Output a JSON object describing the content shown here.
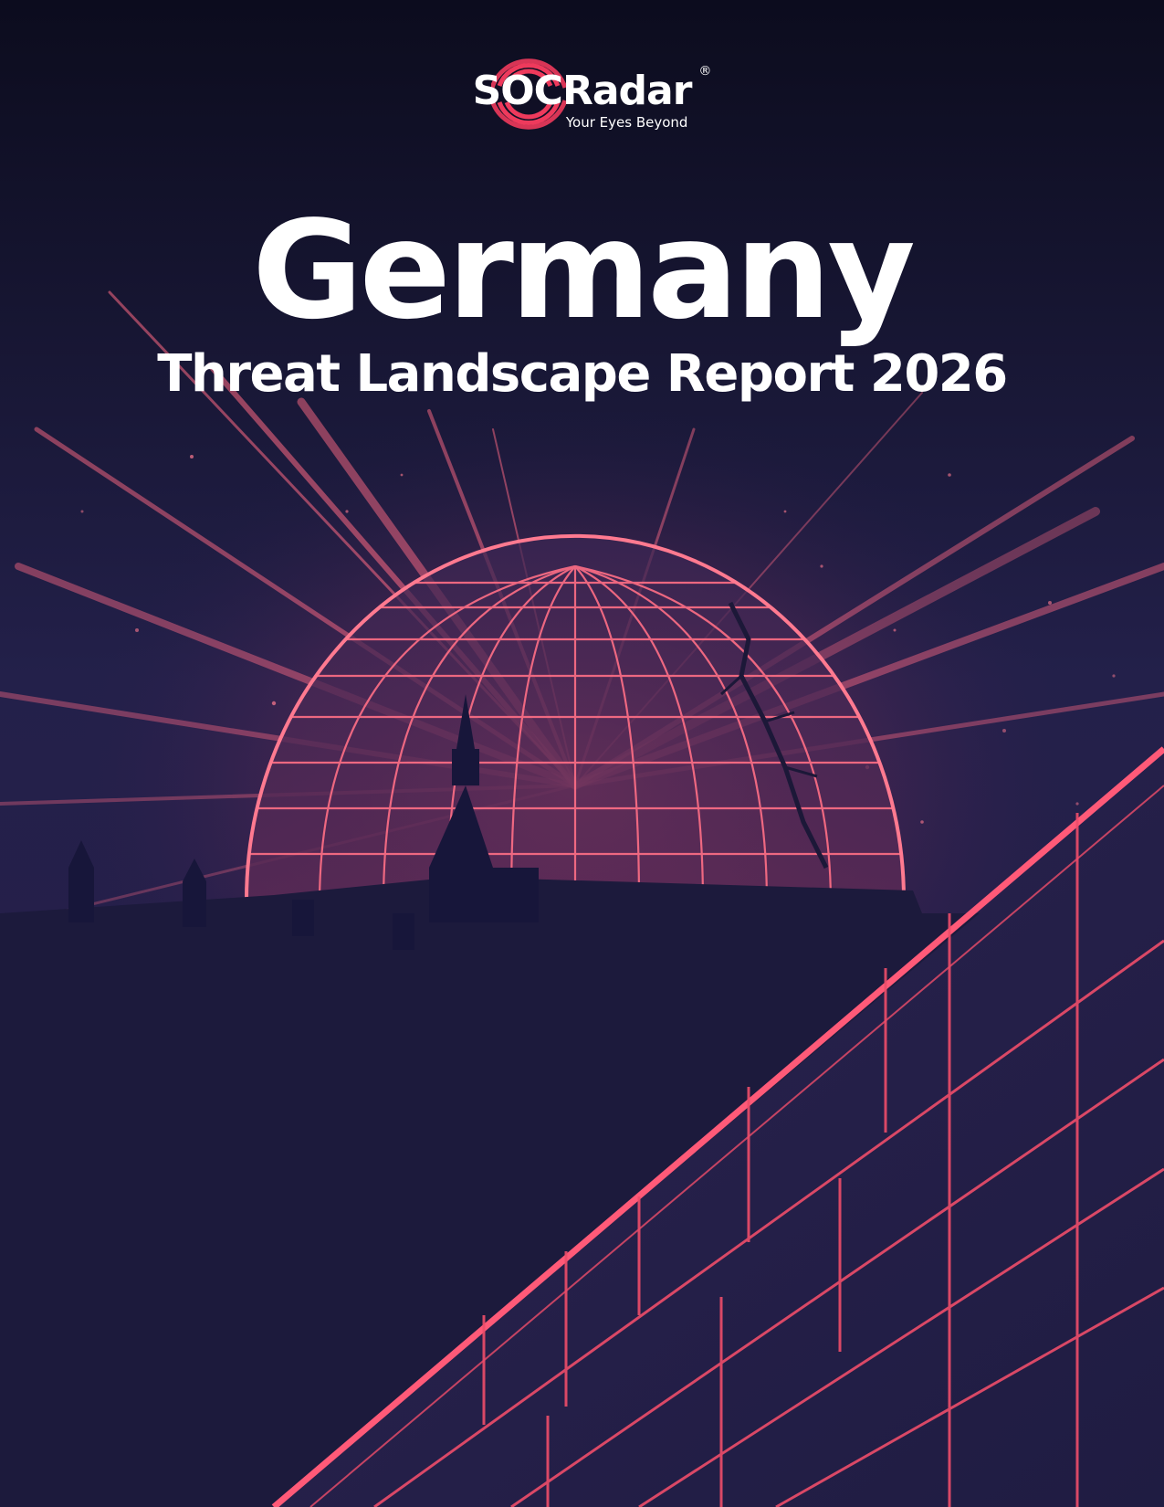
{
  "logo": {
    "name": "SOCRadar",
    "registered": "®",
    "tagline": "Your Eyes Beyond"
  },
  "title": "Germany",
  "subtitle": "Threat Landscape Report 2026",
  "colors": {
    "background_top": "#0c0c1e",
    "background_mid": "#23204a",
    "accent": "#ee4d6a",
    "glow": "#ff6f86",
    "building": "#1a1a3a"
  },
  "icons": [
    "radar-logo-icon"
  ]
}
